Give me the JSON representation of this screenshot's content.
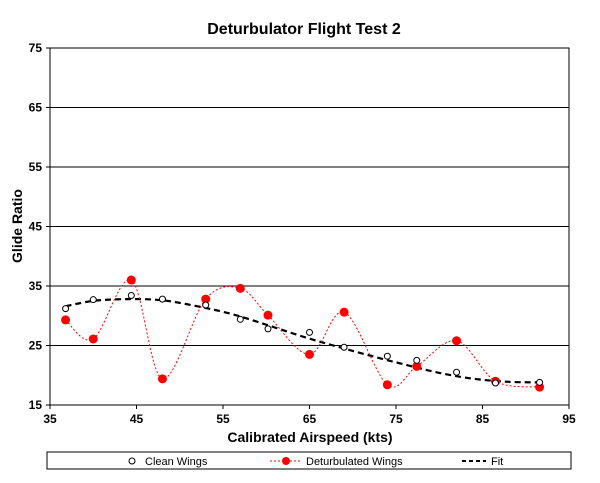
{
  "chart_data": {
    "type": "scatter",
    "title": "Deturbulator Flight Test 2",
    "xlabel": "Calibrated Airspeed  (kts)",
    "ylabel": "Glide Ratio",
    "xlim": [
      35,
      95
    ],
    "ylim": [
      15,
      75
    ],
    "xticks": [
      "35",
      "45",
      "55",
      "65",
      "75",
      "85",
      "95"
    ],
    "yticks": [
      "15",
      "25",
      "35",
      "45",
      "55",
      "65",
      "75"
    ],
    "grid": "horizontal",
    "legend_position": "bottom",
    "series": [
      {
        "name": "Clean Wings",
        "style": "open-circle",
        "color": "#000000",
        "x": [
          36.8,
          40.0,
          44.4,
          48.0,
          53.0,
          57.0,
          60.2,
          65.0,
          69.0,
          74.0,
          77.4,
          82.0,
          86.5,
          91.6
        ],
        "y": [
          31.2,
          32.7,
          33.4,
          32.8,
          31.8,
          29.4,
          27.8,
          27.2,
          24.7,
          23.2,
          22.5,
          20.5,
          18.7,
          18.8
        ]
      },
      {
        "name": "Deturbulated Wings",
        "style": "filled-circle-dotted-line",
        "color": "#ff0000",
        "x": [
          36.8,
          40.0,
          44.4,
          48.0,
          53.0,
          57.0,
          60.2,
          65.0,
          69.0,
          74.0,
          77.4,
          82.0,
          86.5,
          91.6
        ],
        "y": [
          29.3,
          26.1,
          36.0,
          19.4,
          32.8,
          34.6,
          30.1,
          23.5,
          30.6,
          18.4,
          21.5,
          25.8,
          19.0,
          18.0
        ]
      },
      {
        "name": "Fit",
        "style": "dashed-line",
        "color": "#000000",
        "x": [
          36.8,
          40,
          44,
          48,
          52,
          56,
          60,
          64,
          68,
          72,
          76,
          80,
          84,
          88,
          91.6
        ],
        "y": [
          31.6,
          32.5,
          32.8,
          32.6,
          31.6,
          30.3,
          28.5,
          26.6,
          24.9,
          23.3,
          21.8,
          20.4,
          19.4,
          18.9,
          18.8
        ]
      }
    ]
  }
}
